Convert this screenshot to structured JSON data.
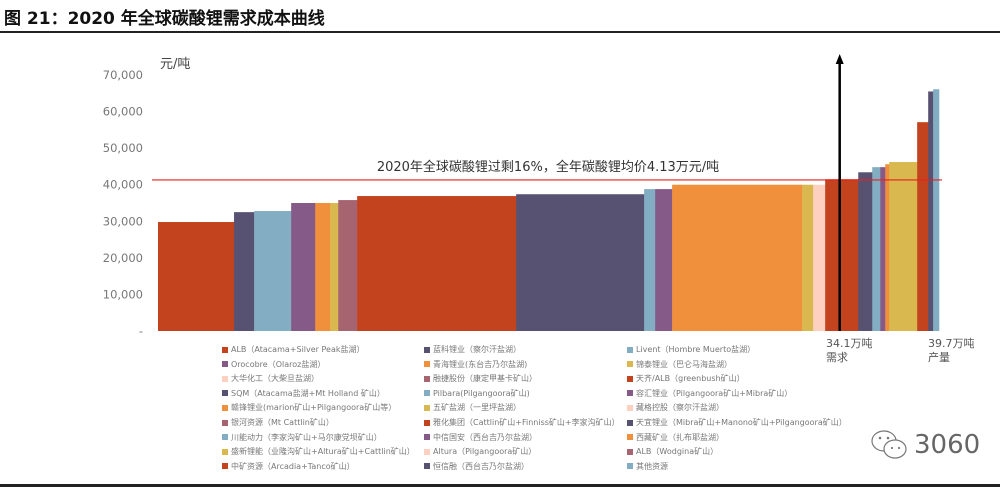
{
  "title": "图 21：2020 年全球碳酸锂需求成本曲线",
  "watermark": "3060",
  "colors": {
    "red": "#c4431f",
    "dark": "#575272",
    "blue": "#82adc2",
    "purple": "#865a88",
    "orange": "#f0903c",
    "yellow": "#d9b94f",
    "mauve": "#a66470",
    "peach": "#fdd0bf",
    "line": "#e8201d"
  },
  "chart_data": {
    "type": "bar",
    "subtype": "cost-curve (variable-width bars)",
    "title": "2020 年全球碳酸锂需求成本曲线",
    "ylabel": "元/吨",
    "ylim": [
      0,
      70000
    ],
    "yticks": [
      0,
      10000,
      20000,
      30000,
      40000,
      50000,
      60000,
      70000
    ],
    "ytick_labels": [
      "-",
      "10,000",
      "20,000",
      "30,000",
      "40,000",
      "50,000",
      "60,000",
      "70,000"
    ],
    "xlim_wan_ton": [
      0,
      39.7
    ],
    "bars": [
      {
        "color": "red",
        "capacity": 3.86,
        "cost": 29800
      },
      {
        "color": "dark",
        "capacity": 1.02,
        "cost": 32500
      },
      {
        "color": "blue",
        "capacity": 1.88,
        "cost": 32800
      },
      {
        "color": "purple",
        "capacity": 1.22,
        "cost": 35000
      },
      {
        "color": "orange",
        "capacity": 0.76,
        "cost": 35000
      },
      {
        "color": "yellow",
        "capacity": 0.41,
        "cost": 35000
      },
      {
        "color": "mauve",
        "capacity": 0.96,
        "cost": 35800
      },
      {
        "color": "red",
        "capacity": 8.07,
        "cost": 36900
      },
      {
        "color": "dark",
        "capacity": 6.5,
        "cost": 37400
      },
      {
        "color": "blue",
        "capacity": 0.56,
        "cost": 38800
      },
      {
        "color": "purple",
        "capacity": 0.86,
        "cost": 38800
      },
      {
        "color": "orange",
        "capacity": 6.6,
        "cost": 40000
      },
      {
        "color": "yellow",
        "capacity": 0.56,
        "cost": 40000
      },
      {
        "color": "peach",
        "capacity": 0.61,
        "cost": 40000
      },
      {
        "color": "red",
        "capacity": 1.68,
        "cost": 41500
      },
      {
        "color": "dark",
        "capacity": 0.71,
        "cost": 43400
      },
      {
        "color": "blue",
        "capacity": 0.41,
        "cost": 44800
      },
      {
        "color": "purple",
        "capacity": 0.25,
        "cost": 44800
      },
      {
        "color": "orange",
        "capacity": 0.2,
        "cost": 45600
      },
      {
        "color": "yellow",
        "capacity": 1.42,
        "cost": 46200
      },
      {
        "color": "red",
        "capacity": 0.56,
        "cost": 57100
      },
      {
        "color": "dark",
        "capacity": 0.25,
        "cost": 65500
      },
      {
        "color": "blue",
        "capacity": 0.3,
        "cost": 66100
      }
    ],
    "avg_price_line": 41300,
    "annotation": "2020年全球碳酸锂过剩16%，全年碳酸锂均价4.13万元/吨",
    "demand": {
      "value": 34.1,
      "label1": "34.1万吨",
      "label2": "需求"
    },
    "supply": {
      "value": 39.7,
      "label1": "39.7万吨",
      "label2": "产量"
    },
    "legend_position": "bottom",
    "legend": [
      {
        "label": "ALB（Atacama+Silver Peak盐湖）",
        "color": "red"
      },
      {
        "label": "Orocobre（Olaroz盐湖）",
        "color": "purple"
      },
      {
        "label": "大华化工（大柴旦盐湖）",
        "color": "peach"
      },
      {
        "label": "SQM（Atacama盐湖+Mt Holland 矿山）",
        "color": "dark"
      },
      {
        "label": "赣锋锂业(marion矿山+Pilgangoora矿山等）",
        "color": "orange"
      },
      {
        "label": "银河资源（Mt Cattlin矿山）",
        "color": "mauve"
      },
      {
        "label": "川能动力（李家沟矿山+马尔康党坝矿山）",
        "color": "blue"
      },
      {
        "label": "盛新锂能（业隆沟矿山+Altura矿山+Cattlin矿山）",
        "color": "yellow"
      },
      {
        "label": "中矿资源（Arcadia+Tanco矿山）",
        "color": "red"
      },
      {
        "label": "蓝科锂业（察尔汗盐湖）",
        "color": "dark"
      },
      {
        "label": "青海锂业(东台吉乃尔盐湖)",
        "color": "orange"
      },
      {
        "label": "融捷股份（康定甲基卡矿山）",
        "color": "mauve"
      },
      {
        "label": "Pilbara(Pilgangoora矿山)",
        "color": "blue"
      },
      {
        "label": "五矿盐湖（一里坪盐湖）",
        "color": "yellow"
      },
      {
        "label": "雅化集团（Cattlin矿山+Finniss矿山+李家沟矿山）",
        "color": "red"
      },
      {
        "label": "中信国安（西台吉乃尔盐湖）",
        "color": "purple"
      },
      {
        "label": "Altura（Pilgangoora矿山）",
        "color": "peach"
      },
      {
        "label": "恒信融（西台吉乃尔盐湖）",
        "color": "dark"
      },
      {
        "label": "Livent（Hombre Muerto盐湖）",
        "color": "blue"
      },
      {
        "label": "锦泰锂业（巴仑马海盐湖）",
        "color": "yellow"
      },
      {
        "label": "天齐/ALB（greenbush矿山）",
        "color": "red"
      },
      {
        "label": "容汇锂业（Pilgangoora矿山+Mibra矿山）",
        "color": "purple"
      },
      {
        "label": "藏格控股（察尔汗盐湖）",
        "color": "peach"
      },
      {
        "label": "天宜锂业（Mibra矿山+Manono矿山+Pilgangoora矿山）",
        "color": "dark"
      },
      {
        "label": "西藏矿业（扎布耶盐湖）",
        "color": "orange"
      },
      {
        "label": "ALB（Wodgina矿山）",
        "color": "mauve"
      },
      {
        "label": "其他资源",
        "color": "blue"
      }
    ]
  }
}
